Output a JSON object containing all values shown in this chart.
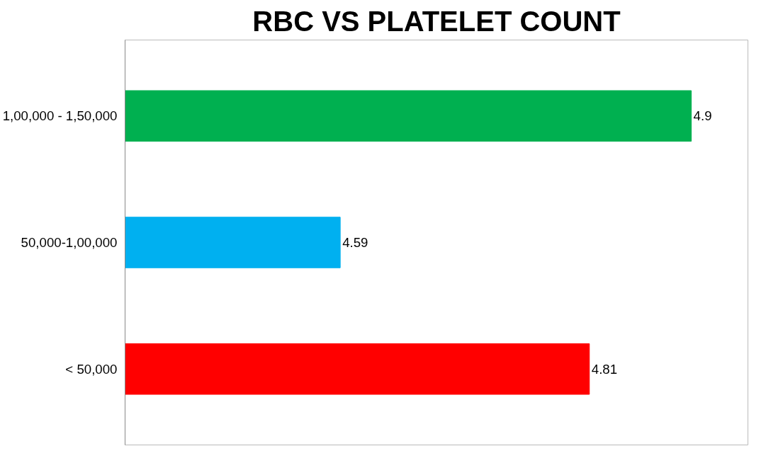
{
  "chart_data": {
    "type": "bar",
    "orientation": "horizontal",
    "title": "RBC VS PLATELET COUNT",
    "categories": [
      "1,00,000 - 1,50,000",
      "50,000-1,00,000",
      "< 50,000"
    ],
    "values": [
      4.9,
      4.59,
      4.81
    ],
    "colors": [
      "#00b050",
      "#00b0f0",
      "#ff0000"
    ],
    "xlim": [
      4.4,
      4.95
    ],
    "data_labels": true,
    "grid": false,
    "tick_labels": "y"
  }
}
